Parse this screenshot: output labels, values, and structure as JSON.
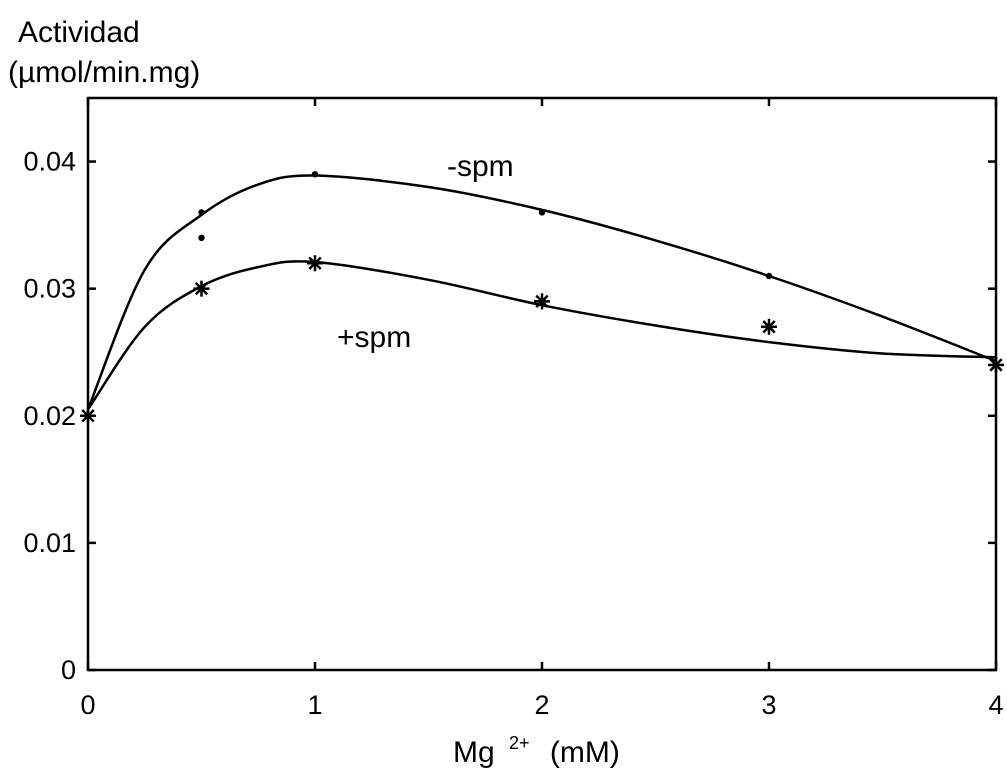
{
  "chart_data": {
    "type": "line",
    "title_line1": "Actividad",
    "title_line2": "(µmol/min.mg)",
    "xlabel_main": "Mg",
    "xlabel_sup": "2+",
    "xlabel_unit": "(mM)",
    "xlim": [
      0,
      4
    ],
    "ylim": [
      0,
      0.045
    ],
    "xticks": [
      0,
      1,
      2,
      3,
      4
    ],
    "xtick_labels": [
      "0",
      "1",
      "2",
      "3",
      "4"
    ],
    "yticks": [
      0,
      0.01,
      0.02,
      0.03,
      0.04
    ],
    "ytick_labels": [
      "0",
      "0.01",
      "0.02",
      "0.03",
      "0.04"
    ],
    "grid": false,
    "series": [
      {
        "name": "-spm",
        "marker": "dot",
        "points": [
          {
            "x": 0,
            "y": 0.02
          },
          {
            "x": 0.5,
            "y": 0.036
          },
          {
            "x": 0.5,
            "y": 0.034
          },
          {
            "x": 1,
            "y": 0.039
          },
          {
            "x": 2,
            "y": 0.036
          },
          {
            "x": 3,
            "y": 0.031
          },
          {
            "x": 4,
            "y": 0.024
          }
        ],
        "curve": [
          {
            "x": 0,
            "y": 0.0205
          },
          {
            "x": 0.25,
            "y": 0.0315
          },
          {
            "x": 0.5,
            "y": 0.0358
          },
          {
            "x": 0.75,
            "y": 0.0382
          },
          {
            "x": 1,
            "y": 0.0389
          },
          {
            "x": 1.5,
            "y": 0.038
          },
          {
            "x": 2,
            "y": 0.0362
          },
          {
            "x": 2.5,
            "y": 0.0338
          },
          {
            "x": 3,
            "y": 0.031
          },
          {
            "x": 3.5,
            "y": 0.0278
          },
          {
            "x": 4,
            "y": 0.0243
          }
        ]
      },
      {
        "name": "+spm",
        "marker": "star",
        "points": [
          {
            "x": 0,
            "y": 0.02
          },
          {
            "x": 0.5,
            "y": 0.03
          },
          {
            "x": 1,
            "y": 0.032
          },
          {
            "x": 2,
            "y": 0.029
          },
          {
            "x": 3,
            "y": 0.027
          },
          {
            "x": 4,
            "y": 0.024
          }
        ],
        "curve": [
          {
            "x": 0,
            "y": 0.0205
          },
          {
            "x": 0.25,
            "y": 0.027
          },
          {
            "x": 0.5,
            "y": 0.0302
          },
          {
            "x": 0.75,
            "y": 0.0317
          },
          {
            "x": 1,
            "y": 0.0321
          },
          {
            "x": 1.5,
            "y": 0.0307
          },
          {
            "x": 2,
            "y": 0.0287
          },
          {
            "x": 2.5,
            "y": 0.0271
          },
          {
            "x": 3,
            "y": 0.0258
          },
          {
            "x": 3.5,
            "y": 0.0249
          },
          {
            "x": 4,
            "y": 0.0246
          }
        ]
      }
    ]
  }
}
